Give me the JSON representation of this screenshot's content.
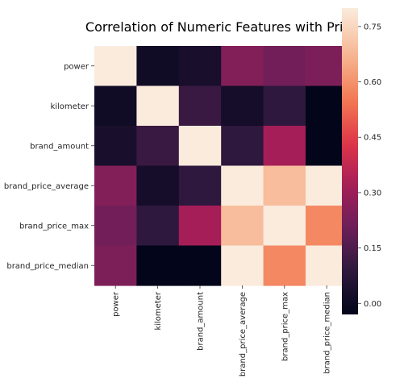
{
  "chart_data": {
    "type": "heatmap",
    "title": "Correlation of Numeric Features with Price",
    "xlabel": "",
    "ylabel": "",
    "rows": [
      "power",
      "kilometer",
      "brand_amount",
      "brand_price_average",
      "brand_price_max",
      "brand_price_median"
    ],
    "columns": [
      "power",
      "kilometer",
      "brand_amount",
      "brand_price_average",
      "brand_price_max",
      "brand_price_median"
    ],
    "values": [
      [
        0.8,
        0.01,
        0.03,
        0.25,
        0.22,
        0.24
      ],
      [
        0.01,
        0.8,
        0.11,
        0.02,
        0.09,
        -0.03
      ],
      [
        0.03,
        0.11,
        0.8,
        0.09,
        0.32,
        -0.03
      ],
      [
        0.25,
        0.02,
        0.09,
        0.8,
        0.69,
        0.8
      ],
      [
        0.22,
        0.09,
        0.32,
        0.69,
        0.8,
        0.58
      ],
      [
        0.24,
        -0.03,
        -0.03,
        0.8,
        0.58,
        0.8
      ]
    ],
    "colorbar": {
      "min": -0.03,
      "max": 0.8,
      "ticks": [
        0.0,
        0.15,
        0.3,
        0.45,
        0.6,
        0.75
      ],
      "tick_labels": [
        "0.00",
        "0.15",
        "0.30",
        "0.45",
        "0.60",
        "0.75"
      ],
      "colormap": "rocket"
    },
    "grid": false,
    "legend": "colorbar-right"
  }
}
